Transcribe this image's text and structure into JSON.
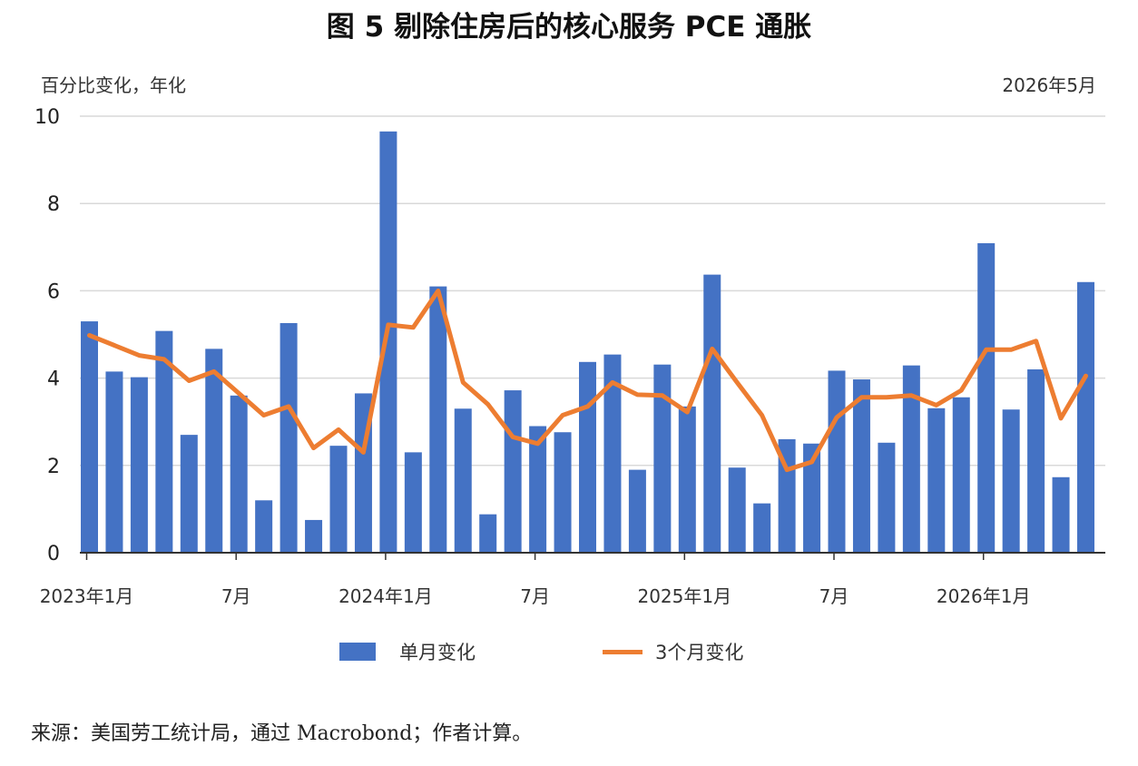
{
  "title": "图 5 剔除住房后的核心服务 PCE 通胀",
  "unit_label": "百分比变化，年化",
  "date_label": "2026年5月",
  "source": "来源：美国劳工统计局，通过 Macrobond；作者计算。",
  "colors": {
    "bars": "#4472c4",
    "line": "#ed7d31",
    "grid": "#d9d9d9",
    "axis": "#333333"
  },
  "chart_data": {
    "type": "bar",
    "y_ticks": [
      0,
      2,
      4,
      6,
      8,
      10
    ],
    "ylim": [
      0,
      10
    ],
    "grid": true,
    "legend_position": "bottom",
    "x_tick_labels": [
      {
        "index": 0,
        "label": "2023年1月"
      },
      {
        "index": 6,
        "label": "7月"
      },
      {
        "index": 12,
        "label": "2024年1月"
      },
      {
        "index": 18,
        "label": "7月"
      },
      {
        "index": 24,
        "label": "2025年1月"
      },
      {
        "index": 30,
        "label": "7月"
      },
      {
        "index": 36,
        "label": "2026年1月"
      }
    ],
    "series": [
      {
        "name": "单月变化",
        "kind": "bar",
        "values": [
          5.3,
          4.15,
          4.02,
          5.08,
          2.7,
          4.67,
          3.6,
          1.2,
          5.26,
          0.75,
          2.45,
          3.65,
          9.65,
          2.3,
          6.1,
          3.3,
          0.88,
          3.72,
          2.9,
          2.76,
          4.37,
          4.54,
          1.9,
          4.31,
          3.35,
          6.37,
          1.95,
          1.13,
          2.6,
          2.5,
          4.17,
          3.97,
          2.52,
          4.29,
          3.31,
          3.56,
          7.09,
          3.28,
          4.2,
          1.73,
          6.2
        ]
      },
      {
        "name": "3个月变化",
        "kind": "line",
        "values": [
          4.98,
          4.75,
          4.52,
          4.43,
          3.94,
          4.15,
          3.65,
          3.15,
          3.35,
          2.4,
          2.82,
          2.3,
          5.22,
          5.16,
          6.0,
          3.9,
          3.4,
          2.65,
          2.5,
          3.15,
          3.35,
          3.9,
          3.62,
          3.6,
          3.22,
          4.67,
          3.9,
          3.15,
          1.9,
          2.08,
          3.1,
          3.56,
          3.56,
          3.6,
          3.38,
          3.72,
          4.65,
          4.65,
          4.85,
          3.08,
          4.05
        ]
      }
    ]
  }
}
